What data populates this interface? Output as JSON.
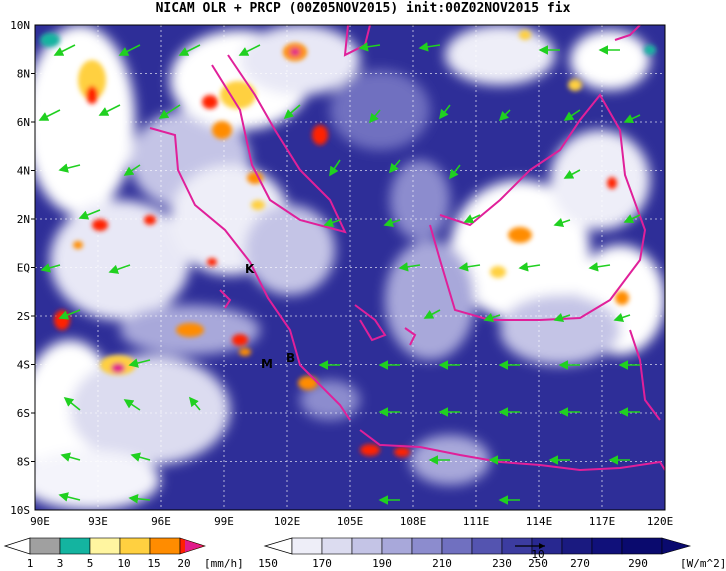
{
  "title": "NICAM OLR + PRCP (00Z05NOV2015) init:00Z02NOV2015 fix",
  "lat_labels": [
    "10N",
    "8N",
    "6N",
    "4N",
    "2N",
    "EQ",
    "2S",
    "4S",
    "6S",
    "8S",
    "10S"
  ],
  "lon_labels": [
    "90E",
    "93E",
    "96E",
    "99E",
    "102E",
    "105E",
    "108E",
    "111E",
    "114E",
    "117E",
    "120E"
  ],
  "map_extent": {
    "lon": [
      90,
      120
    ],
    "lat": [
      -10,
      10
    ]
  },
  "places": [
    {
      "text": "K",
      "lon": 100.6,
      "lat": -0.3
    },
    {
      "text": "M",
      "lon": 100.5,
      "lat": -4.0
    },
    {
      "text": "B",
      "lon": 101.7,
      "lat": -3.8
    }
  ],
  "precip_colorbar": {
    "ticks": [
      "1",
      "3",
      "5",
      "10",
      "15",
      "20"
    ],
    "unit": "[mm/h]",
    "colors": [
      "#a0a0a0",
      "#14b4a0",
      "#fff5a0",
      "#ffd040",
      "#ff8c00",
      "#ff2000",
      "#e01c8c"
    ]
  },
  "olr_colorbar": {
    "ticks": [
      "150",
      "170",
      "190",
      "210",
      "230",
      "250",
      "270",
      "290"
    ],
    "unit": "[W/m^2]",
    "colors": [
      "#ffffff",
      "#eeeef8",
      "#dcdcf0",
      "#c4c4e6",
      "#a8a8da",
      "#8c8cce",
      "#7070c0",
      "#5454b0",
      "#3c3ca0",
      "#282890",
      "#1a1a80",
      "#10107a",
      "#0a0a6e"
    ]
  },
  "reference_vector_label": "10",
  "colors": {
    "ocean_low_olr": "#2a2a96",
    "coastline": "#e0209a",
    "wind_vector": "#20d020",
    "grid": "#ffffff"
  }
}
